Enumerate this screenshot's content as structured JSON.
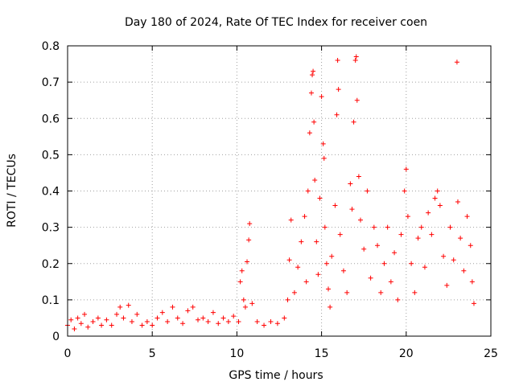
{
  "chart_data": {
    "type": "scatter",
    "title": "Day 180 of 2024, Rate Of TEC Index for receiver coen",
    "xlabel": "GPS time / hours",
    "ylabel": "ROTI / TECUs",
    "xlim": [
      0,
      25
    ],
    "ylim": [
      0,
      0.8
    ],
    "xticks": [
      0,
      5,
      10,
      15,
      20,
      25
    ],
    "xtick_labels": [
      "0",
      "5",
      "10",
      "15",
      "20",
      "25"
    ],
    "yticks": [
      0,
      0.1,
      0.2,
      0.3,
      0.4,
      0.5,
      0.6,
      0.7,
      0.8
    ],
    "ytick_labels": [
      "0",
      "0.1",
      "0.2",
      "0.3",
      "0.4",
      "0.5",
      "0.6",
      "0.7",
      "0.8"
    ],
    "grid": true,
    "marker": "+",
    "color": "#ff0000",
    "series": [
      {
        "name": "ROTI",
        "points": [
          [
            0.0,
            0.03
          ],
          [
            0.2,
            0.045
          ],
          [
            0.4,
            0.02
          ],
          [
            0.6,
            0.05
          ],
          [
            0.8,
            0.035
          ],
          [
            1.0,
            0.06
          ],
          [
            1.2,
            0.025
          ],
          [
            1.5,
            0.04
          ],
          [
            1.8,
            0.05
          ],
          [
            2.0,
            0.03
          ],
          [
            2.3,
            0.045
          ],
          [
            2.6,
            0.03
          ],
          [
            2.9,
            0.06
          ],
          [
            3.1,
            0.08
          ],
          [
            3.3,
            0.05
          ],
          [
            3.6,
            0.085
          ],
          [
            3.8,
            0.04
          ],
          [
            4.1,
            0.06
          ],
          [
            4.4,
            0.03
          ],
          [
            4.7,
            0.04
          ],
          [
            5.0,
            0.03
          ],
          [
            5.3,
            0.05
          ],
          [
            5.6,
            0.065
          ],
          [
            5.9,
            0.04
          ],
          [
            6.2,
            0.08
          ],
          [
            6.5,
            0.05
          ],
          [
            6.8,
            0.035
          ],
          [
            7.1,
            0.07
          ],
          [
            7.4,
            0.08
          ],
          [
            7.7,
            0.045
          ],
          [
            8.0,
            0.05
          ],
          [
            8.3,
            0.04
          ],
          [
            8.6,
            0.065
          ],
          [
            8.9,
            0.035
          ],
          [
            9.2,
            0.05
          ],
          [
            9.5,
            0.04
          ],
          [
            9.8,
            0.055
          ],
          [
            10.1,
            0.04
          ],
          [
            10.2,
            0.15
          ],
          [
            10.3,
            0.18
          ],
          [
            10.4,
            0.1
          ],
          [
            10.5,
            0.08
          ],
          [
            10.6,
            0.205
          ],
          [
            10.7,
            0.265
          ],
          [
            10.75,
            0.31
          ],
          [
            10.9,
            0.09
          ],
          [
            11.2,
            0.04
          ],
          [
            11.6,
            0.03
          ],
          [
            12.0,
            0.04
          ],
          [
            12.4,
            0.035
          ],
          [
            12.8,
            0.05
          ],
          [
            13.0,
            0.1
          ],
          [
            13.1,
            0.21
          ],
          [
            13.2,
            0.32
          ],
          [
            13.4,
            0.12
          ],
          [
            13.6,
            0.19
          ],
          [
            13.8,
            0.26
          ],
          [
            14.0,
            0.33
          ],
          [
            14.1,
            0.15
          ],
          [
            14.2,
            0.4
          ],
          [
            14.3,
            0.56
          ],
          [
            14.4,
            0.67
          ],
          [
            14.45,
            0.72
          ],
          [
            14.5,
            0.73
          ],
          [
            14.55,
            0.59
          ],
          [
            14.6,
            0.43
          ],
          [
            14.7,
            0.26
          ],
          [
            14.8,
            0.17
          ],
          [
            14.9,
            0.38
          ],
          [
            15.0,
            0.66
          ],
          [
            15.1,
            0.53
          ],
          [
            15.15,
            0.49
          ],
          [
            15.2,
            0.3
          ],
          [
            15.3,
            0.2
          ],
          [
            15.4,
            0.13
          ],
          [
            15.5,
            0.08
          ],
          [
            15.6,
            0.22
          ],
          [
            15.8,
            0.36
          ],
          [
            15.9,
            0.61
          ],
          [
            15.95,
            0.76
          ],
          [
            16.0,
            0.68
          ],
          [
            16.1,
            0.28
          ],
          [
            16.3,
            0.18
          ],
          [
            16.5,
            0.12
          ],
          [
            16.7,
            0.42
          ],
          [
            16.8,
            0.35
          ],
          [
            16.9,
            0.59
          ],
          [
            17.0,
            0.76
          ],
          [
            17.05,
            0.77
          ],
          [
            17.1,
            0.65
          ],
          [
            17.2,
            0.44
          ],
          [
            17.3,
            0.32
          ],
          [
            17.5,
            0.24
          ],
          [
            17.7,
            0.4
          ],
          [
            17.9,
            0.16
          ],
          [
            18.1,
            0.3
          ],
          [
            18.3,
            0.25
          ],
          [
            18.5,
            0.12
          ],
          [
            18.7,
            0.2
          ],
          [
            18.9,
            0.3
          ],
          [
            19.1,
            0.15
          ],
          [
            19.3,
            0.23
          ],
          [
            19.5,
            0.1
          ],
          [
            19.7,
            0.28
          ],
          [
            19.9,
            0.4
          ],
          [
            20.0,
            0.46
          ],
          [
            20.1,
            0.33
          ],
          [
            20.3,
            0.2
          ],
          [
            20.5,
            0.12
          ],
          [
            20.7,
            0.27
          ],
          [
            20.9,
            0.3
          ],
          [
            21.1,
            0.19
          ],
          [
            21.3,
            0.34
          ],
          [
            21.5,
            0.28
          ],
          [
            21.7,
            0.38
          ],
          [
            21.85,
            0.4
          ],
          [
            22.0,
            0.36
          ],
          [
            22.2,
            0.22
          ],
          [
            22.4,
            0.14
          ],
          [
            22.6,
            0.3
          ],
          [
            22.8,
            0.21
          ],
          [
            23.0,
            0.755
          ],
          [
            23.05,
            0.37
          ],
          [
            23.2,
            0.27
          ],
          [
            23.4,
            0.18
          ],
          [
            23.6,
            0.33
          ],
          [
            23.8,
            0.25
          ],
          [
            23.9,
            0.15
          ],
          [
            24.0,
            0.09
          ]
        ]
      }
    ]
  }
}
